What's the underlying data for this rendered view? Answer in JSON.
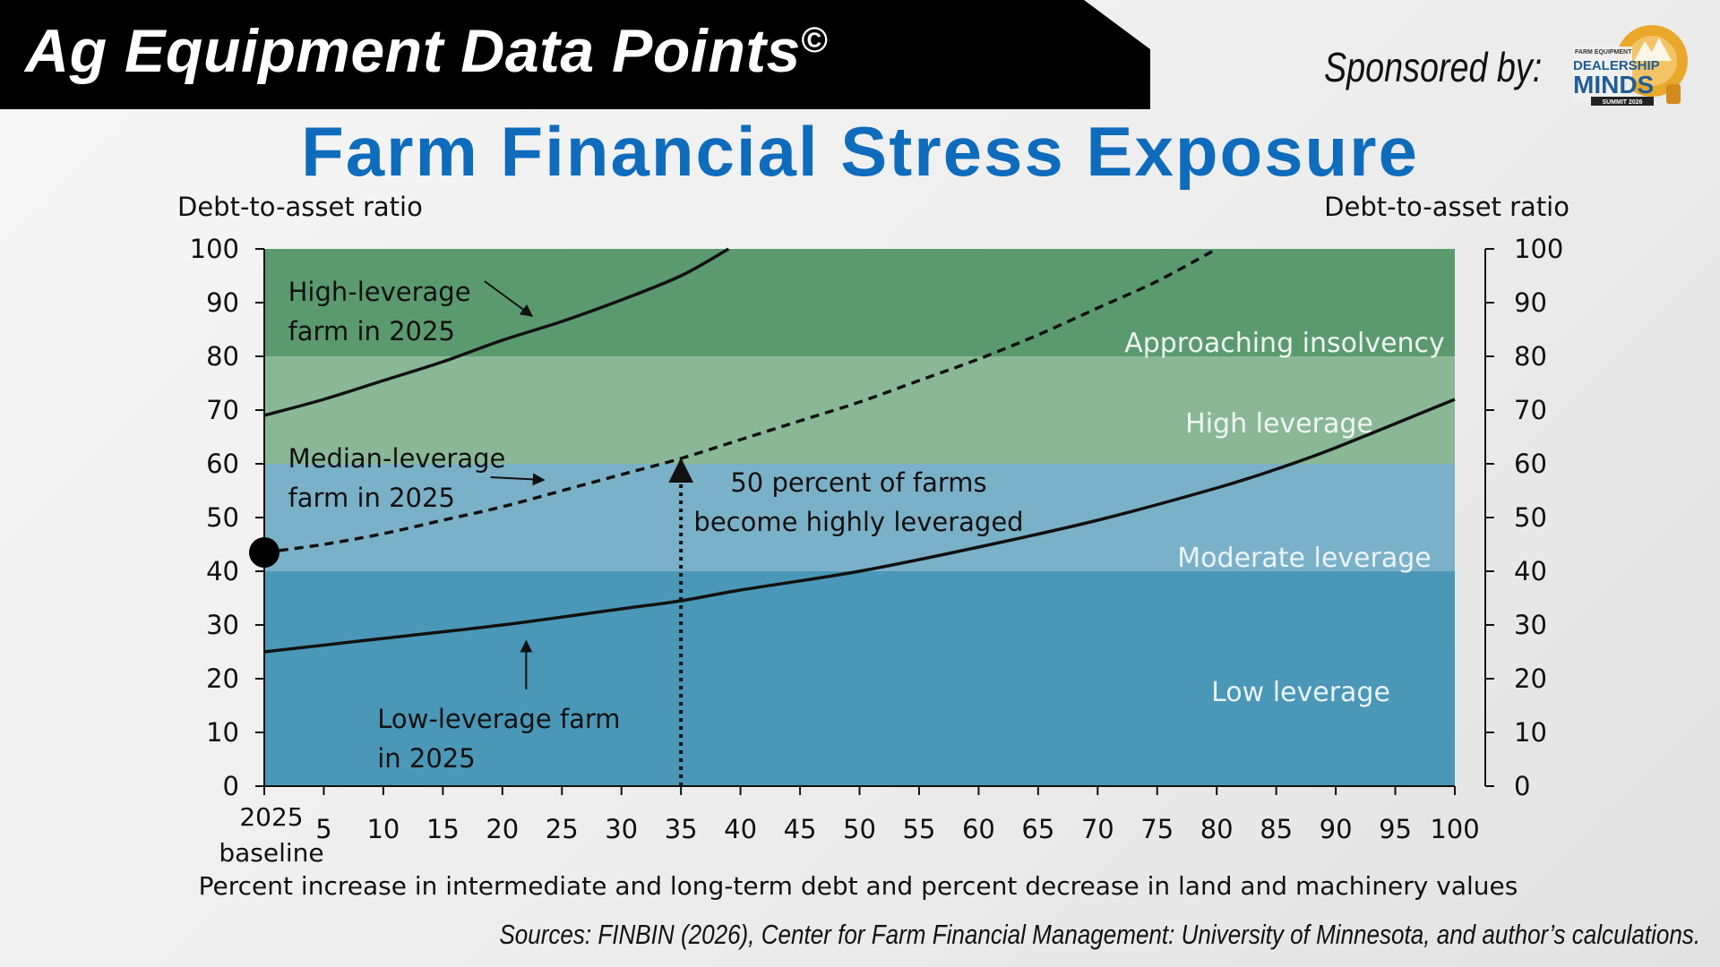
{
  "header": {
    "banner_title": "Ag Equipment Data Points",
    "banner_mark": "©",
    "sponsor_label": "Sponsored by:",
    "logo_text": {
      "top": "FARM EQUIPMENT",
      "mid": "DEALERSHIP",
      "main": "MINDS",
      "bottom": "SUMMIT 2026"
    }
  },
  "page_title": "Farm Financial Stress Exposure",
  "chart_data": {
    "type": "line",
    "y_label_left": "Debt-to-asset ratio",
    "y_label_right": "Debt-to-asset ratio",
    "xlabel": "Percent increase in intermediate and long-term debt and percent decrease in land and machinery values",
    "xlim": [
      0,
      100
    ],
    "ylim": [
      0,
      100
    ],
    "x_ticks": [
      {
        "x": 0,
        "label": "2025",
        "label2": "baseline"
      },
      {
        "x": 5,
        "label": "5"
      },
      {
        "x": 10,
        "label": "10"
      },
      {
        "x": 15,
        "label": "15"
      },
      {
        "x": 20,
        "label": "20"
      },
      {
        "x": 25,
        "label": "25"
      },
      {
        "x": 30,
        "label": "30"
      },
      {
        "x": 35,
        "label": "35"
      },
      {
        "x": 40,
        "label": "40"
      },
      {
        "x": 45,
        "label": "45"
      },
      {
        "x": 50,
        "label": "50"
      },
      {
        "x": 55,
        "label": "55"
      },
      {
        "x": 60,
        "label": "60"
      },
      {
        "x": 65,
        "label": "65"
      },
      {
        "x": 70,
        "label": "70"
      },
      {
        "x": 75,
        "label": "75"
      },
      {
        "x": 80,
        "label": "80"
      },
      {
        "x": 85,
        "label": "85"
      },
      {
        "x": 90,
        "label": "90"
      },
      {
        "x": 95,
        "label": "95"
      },
      {
        "x": 100,
        "label": "100"
      }
    ],
    "y_ticks": [
      0,
      10,
      20,
      30,
      40,
      50,
      60,
      70,
      80,
      90,
      100
    ],
    "bands": [
      {
        "name": "Low leverage",
        "from": 0,
        "to": 40,
        "color": "#4a97b7",
        "label_color": "#eaf4f8"
      },
      {
        "name": "Moderate leverage",
        "from": 40,
        "to": 60,
        "color": "#7bb1c8",
        "label_color": "#eaf4f8"
      },
      {
        "name": "High leverage",
        "from": 60,
        "to": 80,
        "color": "#8ab896",
        "label_color": "#f1f7f2"
      },
      {
        "name": "Approaching insolvency",
        "from": 80,
        "to": 100,
        "color": "#5b9a6f",
        "label_color": "#eef6f0"
      }
    ],
    "series": [
      {
        "id": "high",
        "style": "solid",
        "x": [
          0,
          5,
          10,
          15,
          20,
          25,
          30,
          35,
          39
        ],
        "y": [
          69,
          72,
          75.5,
          79,
          83,
          86.5,
          90.5,
          95,
          100
        ]
      },
      {
        "id": "median",
        "style": "dashed",
        "x": [
          0,
          5,
          10,
          15,
          20,
          25,
          30,
          35,
          40,
          45,
          50,
          55,
          60,
          65,
          70,
          75,
          80
        ],
        "y": [
          43.5,
          45,
          47,
          49.5,
          52,
          55,
          58,
          61,
          64.5,
          68,
          71.5,
          75.5,
          79.5,
          84,
          89,
          94,
          100
        ]
      },
      {
        "id": "low",
        "style": "solid",
        "x": [
          0,
          10,
          20,
          30,
          35,
          40,
          50,
          60,
          70,
          80,
          85,
          90,
          100
        ],
        "y": [
          25,
          27.5,
          30,
          33,
          34.5,
          36.5,
          40,
          44.5,
          49.5,
          55.5,
          59,
          63,
          72
        ]
      }
    ],
    "baseline_point": {
      "x": 0,
      "y": 43.5
    },
    "marker_line": {
      "x": 35,
      "y_from": 0,
      "y_to": 61
    },
    "annotations": [
      {
        "id": "high",
        "line1": "High-leverage",
        "line2": "farm in 2025",
        "tx": 2,
        "ty": 92,
        "ay1": 94,
        "ax1": 18.5,
        "ax2": 22.5,
        "ay2": 87.5
      },
      {
        "id": "median",
        "line1": "Median-leverage",
        "line2": "farm in 2025",
        "tx": 2,
        "ty": 61,
        "ax1": 19,
        "ay1": 57.5,
        "ax2": 23.5,
        "ay2": 57
      },
      {
        "id": "low",
        "line1": "Low-leverage farm",
        "line2": "in 2025",
        "tx": 9.5,
        "ty": 12.5,
        "ax1": 22,
        "ay1": 18,
        "ax2": 22,
        "ay2": 27
      },
      {
        "id": "fifty",
        "line1": "50 percent of farms",
        "line2": "become highly leveraged",
        "tx": 50,
        "ty": 56.5
      }
    ]
  },
  "footer": {
    "sources": "Sources: FINBIN (2026), Center for Farm Financial Management: University of Minnesota, and author’s calculations."
  }
}
